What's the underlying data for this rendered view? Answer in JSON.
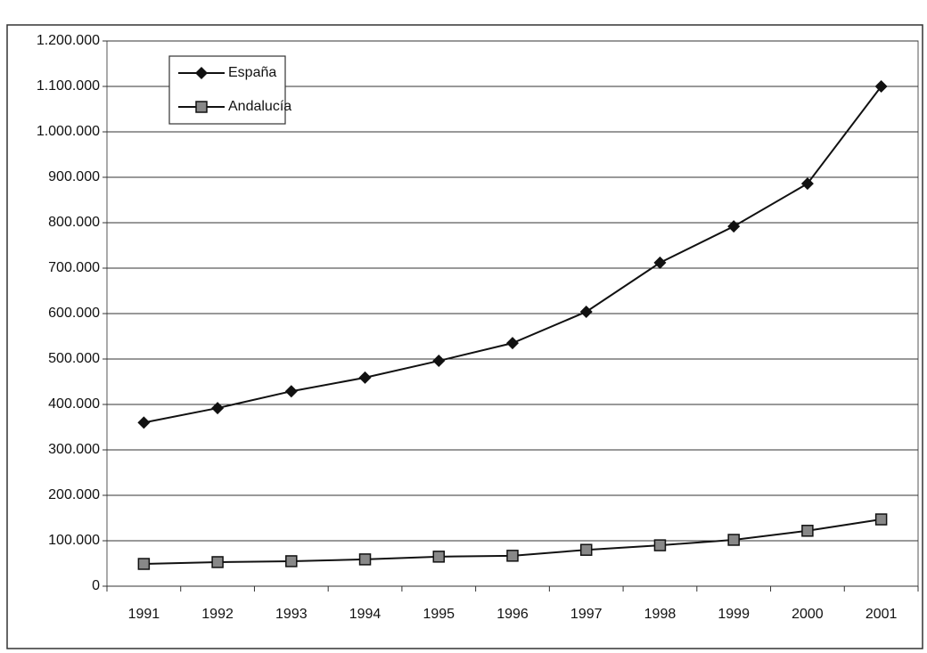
{
  "chart_data": {
    "type": "line",
    "categories": [
      "1991",
      "1992",
      "1993",
      "1994",
      "1995",
      "1996",
      "1997",
      "1998",
      "1999",
      "2000",
      "2001"
    ],
    "series": [
      {
        "name": "España",
        "color": "#111111",
        "marker": "diamond",
        "values": [
          360000,
          392000,
          429000,
          459000,
          496000,
          535000,
          604000,
          712000,
          792000,
          886000,
          1100000
        ]
      },
      {
        "name": "Andalucía",
        "color": "#111111",
        "marker": "square",
        "values": [
          49000,
          53000,
          55000,
          59000,
          65000,
          67000,
          80000,
          90000,
          102000,
          122000,
          147000
        ]
      }
    ],
    "ylim": [
      0,
      1200000
    ],
    "yticks": [
      0,
      {
        "value": 100000,
        "label": "100.000"
      },
      {
        "value": 200000,
        "label": "200.000"
      },
      {
        "value": 300000,
        "label": "300.000"
      },
      {
        "value": 400000,
        "label": "400.000"
      },
      {
        "value": 500000,
        "label": "500.000"
      },
      {
        "value": 600000,
        "label": "600.000"
      },
      {
        "value": 700000,
        "label": "700.000"
      },
      {
        "value": 800000,
        "label": "800.000"
      },
      {
        "value": 900000,
        "label": "900.000"
      },
      {
        "value": 1000000,
        "label": "1.000.000"
      },
      {
        "value": 1100000,
        "label": "1.100.000"
      },
      {
        "value": 1200000,
        "label": "1.200.000"
      }
    ],
    "grid": true,
    "legend": "upper left"
  }
}
